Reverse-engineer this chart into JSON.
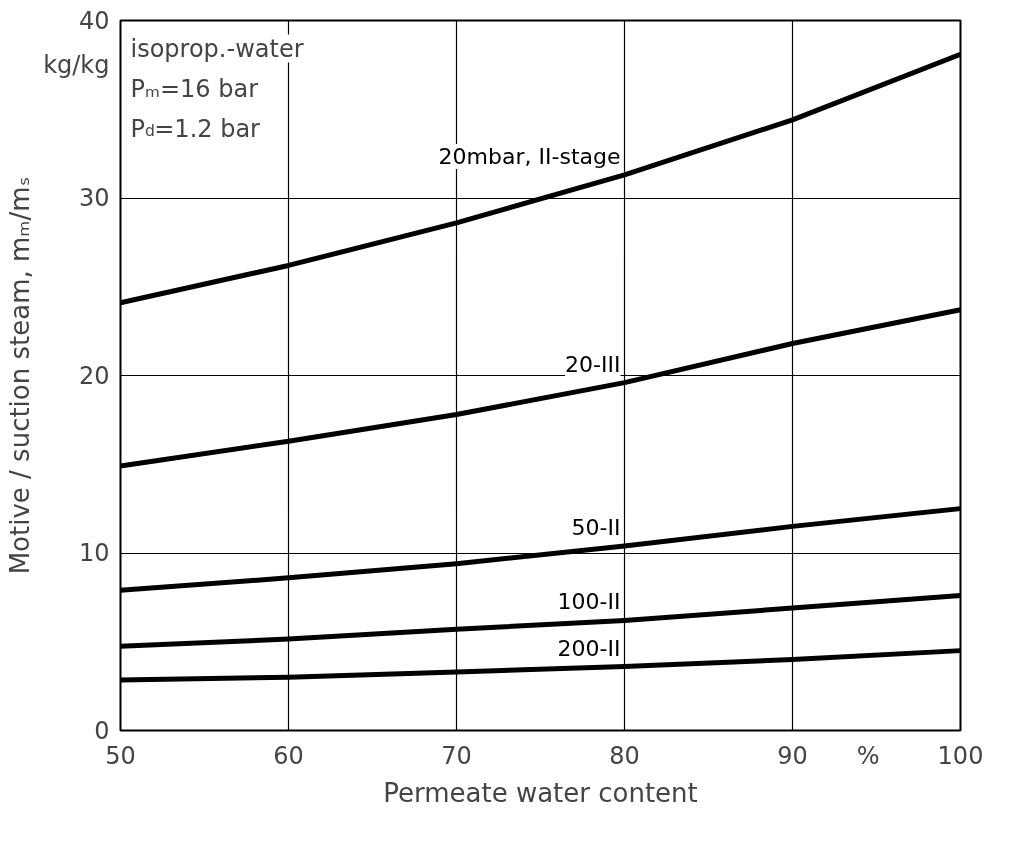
{
  "chart_data": {
    "type": "line",
    "xlabel": "Permeate water content",
    "ylabel": "Motive / suction steam, mₘ/mₛ",
    "x": [
      50,
      60,
      70,
      80,
      90,
      100
    ],
    "series": [
      {
        "name": "20mbar, II-stage",
        "color": "#000000",
        "values": [
          24.1,
          26.2,
          28.6,
          31.3,
          34.4,
          38.1
        ]
      },
      {
        "name": "20-III",
        "color": "#000000",
        "values": [
          14.9,
          16.3,
          17.8,
          19.6,
          21.8,
          23.7
        ]
      },
      {
        "name": "50-II",
        "color": "#000000",
        "values": [
          7.9,
          8.6,
          9.4,
          10.4,
          11.5,
          12.5
        ]
      },
      {
        "name": "100-II",
        "color": "#000000",
        "values": [
          4.75,
          5.15,
          5.7,
          6.2,
          6.9,
          7.6
        ]
      },
      {
        "name": "200-II",
        "color": "#000000",
        "values": [
          2.85,
          3.0,
          3.3,
          3.6,
          4.0,
          4.5
        ]
      }
    ],
    "xlim": [
      50,
      100
    ],
    "xticks": [
      50,
      60,
      70,
      80,
      90,
      100
    ],
    "ylim": [
      0,
      40
    ],
    "yticks": [
      0,
      10,
      20,
      30,
      40
    ],
    "grid": true,
    "legend": false,
    "marker": "none",
    "line_style": "solid",
    "annotations": [
      "kg/kg",
      "%",
      "isoprop.-water",
      "Pₘ=16 bar",
      "P$_{d}$=1.2 bar"
    ]
  }
}
